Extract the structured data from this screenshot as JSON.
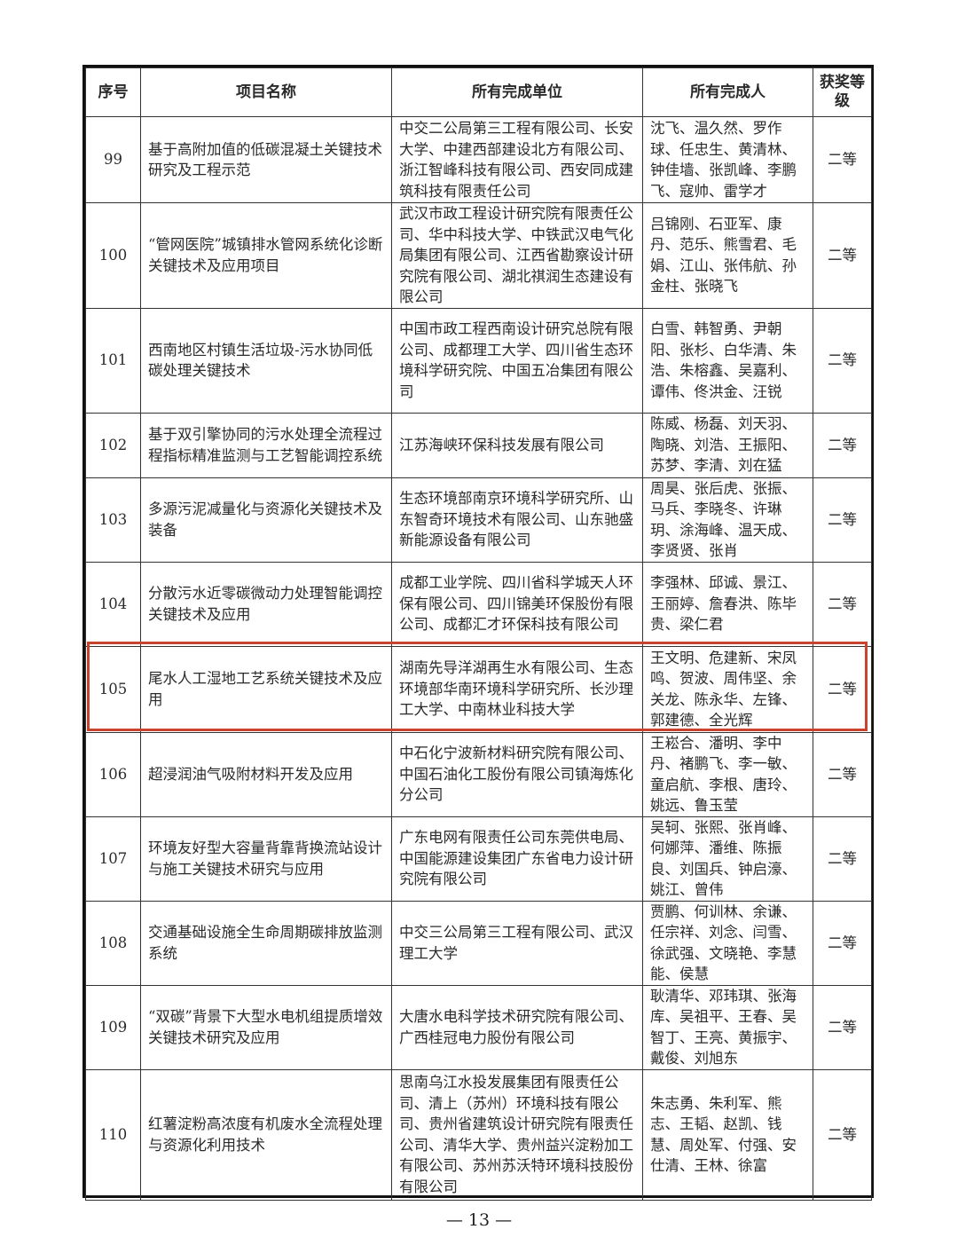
{
  "table": {
    "headers": [
      "序号",
      "项目名称",
      "所有完成单位",
      "所有完成人",
      "获奖等级"
    ],
    "rows": [
      {
        "no": "99",
        "name": "基于高附加值的低碳混凝土关键技术研究及工程示范",
        "units": "中交二公局第三工程有限公司、长安大学、中建西部建设北方有限公司、浙江智峰科技有限公司、西安同成建筑科技有限责任公司",
        "people": "沈飞、温久然、罗作球、任忠生、黄清林、钟佳墙、张凯峰、李鹏飞、寇帅、雷学才",
        "level": "二等"
      },
      {
        "no": "100",
        "name": "“管网医院”城镇排水管网系统化诊断关键技术及应用项目",
        "units": "武汉市政工程设计研究院有限责任公司、华中科技大学、中铁武汉电气化局集团有限公司、江西省勘察设计研究院有限公司、湖北祺润生态建设有限公司",
        "people": "吕锦刚、石亚军、康丹、范乐、熊雪君、毛娟、江山、张伟航、孙金柱、张晓飞",
        "level": "二等"
      },
      {
        "no": "101",
        "name": "西南地区村镇生活垃圾-污水协同低碳处理关键技术",
        "units": "中国市政工程西南设计研究总院有限公司、成都理工大学、四川省生态环境科学研究院、中国五冶集团有限公司",
        "people": "白雪、韩智勇、尹朝阳、张杉、白华清、朱浩、朱榕鑫、吴嘉利、谭伟、佟洪金、汪锐",
        "level": "二等"
      },
      {
        "no": "102",
        "name": "基于双引擎协同的污水处理全流程过程指标精准监测与工艺智能调控系统",
        "units": "江苏海峡环保科技发展有限公司",
        "people": "陈威、杨磊、刘天羽、陶晓、刘浩、王振阳、苏梦、李清、刘在猛",
        "level": "二等"
      },
      {
        "no": "103",
        "name": "多源污泥减量化与资源化关键技术及装备",
        "units": "生态环境部南京环境科学研究所、山东智奇环境技术有限公司、山东驰盛新能源设备有限公司",
        "people": "周昊、张后虎、张振、马兵、李晓冬、许琳玥、涂海峰、温天成、李贤贤、张肖",
        "level": "二等"
      },
      {
        "no": "104",
        "name": "分散污水近零碳微动力处理智能调控关键技术及应用",
        "units": "成都工业学院、四川省科学城天人环保有限公司、四川锦美环保股份有限公司、成都汇才环保科技有限公司",
        "people": "李强林、邱诚、景江、王丽婷、詹春洪、陈毕贵、梁仁君",
        "level": "二等"
      },
      {
        "no": "105",
        "name": "尾水人工湿地工艺系统关键技术及应用",
        "units": "湖南先导洋湖再生水有限公司、生态环境部华南环境科学研究所、长沙理工大学、中南林业科技大学",
        "people": "王文明、危建新、宋凤鸣、贺波、周伟坚、余关龙、陈永华、左锋、郭建德、全光辉",
        "level": "二等"
      },
      {
        "no": "106",
        "name": "超浸润油气吸附材料开发及应用",
        "units": "中石化宁波新材料研究院有限公司、中国石油化工股份有限公司镇海炼化分公司",
        "people": "王崧合、潘明、李中丹、褚鹏飞、李一敏、童启航、李根、唐玲、姚远、鲁玉莹",
        "level": "二等"
      },
      {
        "no": "107",
        "name": "环境友好型大容量背靠背换流站设计与施工关键技术研究与应用",
        "units": "广东电网有限责任公司东莞供电局、中国能源建设集团广东省电力设计研究院有限公司",
        "people": "吴轲、张熙、张肖峰、何娜萍、潘维、陈振良、刘国兵、钟启濠、姚江、曾伟",
        "level": "二等"
      },
      {
        "no": "108",
        "name": "交通基础设施全生命周期碳排放监测系统",
        "units": "中交三公局第三工程有限公司、武汉理工大学",
        "people": "贾鹏、何训林、余谦、任宗祥、刘念、闫雪、徐武强、文晓艳、李慧能、侯慧",
        "level": "二等"
      },
      {
        "no": "109",
        "name": "“双碳”背景下大型水电机组提质增效关键技术研究及应用",
        "units": "大唐水电科学技术研究院有限公司、广西桂冠电力股份有限公司",
        "people": "耿清华、邓玮琪、张海库、吴祖平、王春、吴智丁、王亮、黄振宇、戴俊、刘旭东",
        "level": "二等"
      },
      {
        "no": "110",
        "name": "红薯淀粉高浓度有机废水全流程处理与资源化利用技术",
        "units": "思南乌江水投发展集团有限责任公司、清上（苏州）环境科技有限公司、贵州省建筑设计研究院有限责任公司、清华大学、贵州益兴淀粉加工有限公司、苏州苏沃特环境科技股份有限公司",
        "people": "朱志勇、朱利军、熊志、王韬、赵凯、钱慧、周处军、付强、安仕清、王林、徐富",
        "level": "二等"
      }
    ]
  },
  "highlight": {
    "row_no": "105",
    "color": "#c9442f"
  },
  "page_number": "— 13 —"
}
